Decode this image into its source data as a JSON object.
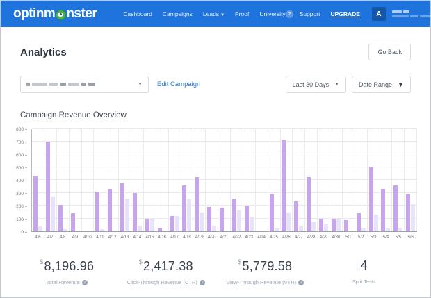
{
  "nav": {
    "logo_prefix": "optinm",
    "logo_suffix": "nster",
    "items": [
      {
        "label": "Dashboard",
        "has_dropdown": false
      },
      {
        "label": "Campaigns",
        "has_dropdown": false
      },
      {
        "label": "Leads",
        "has_dropdown": true
      },
      {
        "label": "Proof",
        "has_dropdown": false
      },
      {
        "label": "University",
        "has_dropdown": false
      }
    ],
    "help_glyph": "?",
    "support_label": "Support",
    "upgrade_label": "UPGRADE",
    "avatar_letter": "A",
    "colors": {
      "bar": "#1e73dc",
      "avatar": "#1457a7",
      "monster_green": "#45b154"
    }
  },
  "header": {
    "title": "Analytics",
    "go_back_label": "Go Back"
  },
  "filters": {
    "edit_campaign_label": "Edit Campaign",
    "period_label": "Last 30 Days",
    "date_range_label": "Date Range"
  },
  "section_title": "Campaign Revenue Overview",
  "chart_data": {
    "type": "bar",
    "title": "Campaign Revenue Overview",
    "categories": [
      "4/6",
      "4/7",
      "4/8",
      "4/9",
      "4/10",
      "4/11",
      "4/12",
      "4/13",
      "4/14",
      "4/15",
      "4/16",
      "4/17",
      "4/18",
      "4/19",
      "4/20",
      "4/21",
      "4/22",
      "4/23",
      "4/24",
      "4/25",
      "4/26",
      "4/27",
      "4/28",
      "4/29",
      "4/30",
      "5/1",
      "5/2",
      "5/3",
      "5/4",
      "5/5",
      "5/6"
    ],
    "series": [
      {
        "name": "revenue-primary",
        "color": "#c7a5ec",
        "values": [
          425,
          700,
          205,
          140,
          0,
          310,
          330,
          375,
          300,
          95,
          25,
          120,
          355,
          420,
          190,
          185,
          255,
          200,
          0,
          290,
          710,
          235,
          420,
          95,
          100,
          90,
          140,
          500,
          330,
          355,
          285
        ]
      },
      {
        "name": "revenue-secondary",
        "color": "#e9e3f9",
        "values": [
          40,
          270,
          15,
          0,
          0,
          15,
          0,
          255,
          45,
          95,
          0,
          120,
          250,
          145,
          45,
          0,
          160,
          115,
          0,
          25,
          145,
          45,
          75,
          60,
          95,
          0,
          25,
          130,
          25,
          25,
          210
        ]
      }
    ],
    "xlabel": "",
    "ylabel": "",
    "ylim": [
      0,
      800
    ],
    "ytick_step": 100,
    "grid": true,
    "legend": "none"
  },
  "stats": [
    {
      "currency": "$",
      "value": "8,196.96",
      "label": "Total Revenue",
      "has_help": true
    },
    {
      "currency": "$",
      "value": "2,417.38",
      "label": "Click-Through Revenue (CTR)",
      "has_help": true
    },
    {
      "currency": "$",
      "value": "5,779.58",
      "label": "View-Through Revenue (VTR)",
      "has_help": true
    },
    {
      "currency": "",
      "value": "4",
      "label": "Split Tests",
      "has_help": false
    }
  ]
}
